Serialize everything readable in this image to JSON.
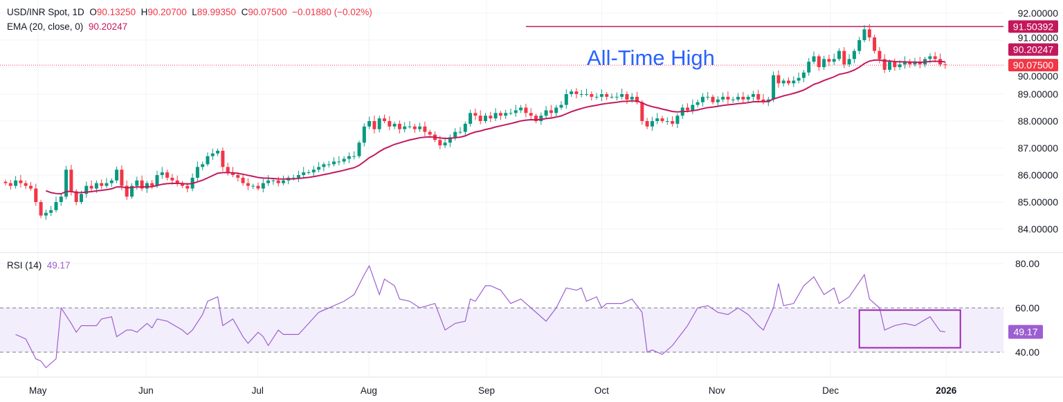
{
  "legend": {
    "symbol": "USD/INR Spot, 1D",
    "o_label": "O",
    "o": "90.13250",
    "h_label": "H",
    "h": "90.20700",
    "l_label": "L",
    "l": "89.99350",
    "c_label": "C",
    "c": "90.07500",
    "change": "−0.01880 (−0.02%)",
    "ema_label": "EMA (20, close, 0)",
    "ema_value": "90.20247",
    "rsi_label": "RSI (14)",
    "rsi_value": "49.17"
  },
  "colors": {
    "up": "#089981",
    "down": "#f23645",
    "ema": "#c2185b",
    "ath": "#c2185b",
    "annotation": "#2962ff",
    "rsi": "#9c5fd1",
    "rsi_box": "#9c27b0",
    "rsi_band": "#f3eefb"
  },
  "chart_data": [
    {
      "type": "candlestick",
      "title": "USD/INR Spot, 1D",
      "ylim": [
        84,
        92
      ],
      "y_ticks": [
        "92.00000",
        "91.00000",
        "90.00000",
        "89.00000",
        "88.00000",
        "87.00000",
        "86.00000",
        "85.00000",
        "84.00000"
      ],
      "y_tick_values": [
        92,
        91,
        90,
        89,
        88,
        87,
        86,
        85,
        84
      ],
      "x_ticks": [
        {
          "label": "May",
          "bar": 6.4,
          "bold": false
        },
        {
          "label": "Jun",
          "bar": 27.8,
          "bold": false
        },
        {
          "label": "Jul",
          "bar": 49.9,
          "bold": false
        },
        {
          "label": "Aug",
          "bar": 71.9,
          "bold": false
        },
        {
          "label": "Sep",
          "bar": 95.2,
          "bold": false
        },
        {
          "label": "Oct",
          "bar": 118,
          "bold": false
        },
        {
          "label": "Nov",
          "bar": 140.8,
          "bold": false
        },
        {
          "label": "Dec",
          "bar": 163.3,
          "bold": false
        },
        {
          "label": "2026",
          "bar": 186.2,
          "bold": true
        }
      ],
      "closes": [
        85.7,
        85.6,
        85.8,
        85.7,
        85.6,
        85.5,
        85.0,
        84.5,
        84.6,
        84.7,
        85.0,
        85.2,
        86.2,
        85.4,
        85.0,
        85.3,
        85.6,
        85.5,
        85.7,
        85.6,
        85.7,
        85.8,
        86.2,
        85.6,
        85.2,
        85.6,
        85.8,
        85.5,
        85.7,
        85.6,
        86.0,
        86.1,
        85.9,
        85.8,
        85.7,
        85.6,
        85.5,
        85.9,
        86.3,
        86.4,
        86.7,
        86.8,
        86.9,
        86.3,
        86.1,
        86.0,
        85.9,
        85.7,
        85.6,
        85.6,
        85.5,
        85.7,
        85.8,
        85.8,
        85.7,
        85.8,
        85.9,
        85.9,
        86.0,
        86.1,
        86.1,
        86.2,
        86.3,
        86.4,
        86.4,
        86.5,
        86.5,
        86.6,
        86.7,
        86.7,
        87.2,
        87.8,
        88.0,
        87.7,
        88.1,
        88.0,
        87.8,
        87.9,
        87.7,
        87.8,
        87.8,
        87.7,
        87.8,
        87.6,
        87.5,
        87.3,
        87.1,
        87.2,
        87.4,
        87.6,
        87.6,
        87.9,
        88.3,
        88.2,
        88.0,
        88.2,
        88.1,
        88.3,
        88.2,
        88.3,
        88.3,
        88.4,
        88.5,
        88.3,
        88.2,
        88.0,
        88.2,
        88.4,
        88.3,
        88.5,
        88.6,
        89.0,
        89.1,
        89.0,
        89.0,
        89.0,
        88.9,
        88.9,
        89.0,
        88.9,
        88.9,
        88.9,
        89.0,
        88.8,
        88.9,
        88.7,
        88.0,
        87.8,
        88.0,
        88.1,
        88.0,
        88.0,
        87.9,
        88.2,
        88.5,
        88.4,
        88.6,
        88.7,
        88.9,
        88.9,
        88.7,
        88.8,
        88.9,
        88.8,
        88.8,
        88.9,
        88.8,
        88.9,
        89.0,
        88.8,
        88.7,
        88.8,
        89.7,
        89.4,
        89.5,
        89.4,
        89.5,
        89.6,
        89.8,
        90.2,
        90.4,
        90.0,
        90.3,
        90.2,
        90.3,
        90.6,
        90.1,
        90.3,
        90.6,
        91.0,
        91.4,
        91.1,
        90.6,
        90.3,
        89.9,
        90.2,
        90.0,
        90.1,
        90.2,
        90.1,
        90.2,
        90.1,
        90.3,
        90.4,
        90.3,
        90.1,
        90.075
      ],
      "ema_period": 20,
      "price_labels": [
        {
          "value": "91.50392",
          "level": 91.50392,
          "color": "#c2185b",
          "shown_at": 91.50392
        },
        {
          "value": "90.20247",
          "level": 90.20247,
          "color": "#c2185b",
          "shown_at": 90.65
        },
        {
          "value": "90.07500",
          "level": 90.075,
          "color": "#f23645",
          "shown_at": 90.075
        }
      ],
      "all_time_high": {
        "label": "All-Time High",
        "level": 91.50392,
        "from_bar": 103
      },
      "current_price": 90.075
    },
    {
      "type": "line",
      "title": "RSI (14)",
      "ylim": [
        30,
        85
      ],
      "y_ticks": [
        "80.00",
        "60.00",
        "40.00"
      ],
      "y_tick_values": [
        80,
        60,
        40
      ],
      "band": [
        40,
        60
      ],
      "highlight_box": {
        "from_bar": 169,
        "to_bar": 189,
        "range": [
          42,
          59
        ]
      },
      "last_value": "49.17",
      "points": [
        [
          2,
          48
        ],
        [
          4,
          46
        ],
        [
          6,
          37
        ],
        [
          7,
          36
        ],
        [
          8,
          33
        ],
        [
          10,
          37
        ],
        [
          11,
          60
        ],
        [
          13,
          53
        ],
        [
          14,
          49
        ],
        [
          15,
          52
        ],
        [
          18,
          52
        ],
        [
          19,
          55
        ],
        [
          21,
          56
        ],
        [
          22,
          47
        ],
        [
          24,
          50
        ],
        [
          25,
          50
        ],
        [
          26,
          49
        ],
        [
          28,
          53
        ],
        [
          29,
          51
        ],
        [
          30,
          55
        ],
        [
          32,
          54
        ],
        [
          35,
          50
        ],
        [
          36,
          48
        ],
        [
          37,
          50
        ],
        [
          39,
          57
        ],
        [
          40,
          63
        ],
        [
          42,
          65
        ],
        [
          43,
          52
        ],
        [
          45,
          55
        ],
        [
          47,
          47
        ],
        [
          48,
          44
        ],
        [
          50,
          49
        ],
        [
          51,
          47
        ],
        [
          52,
          43
        ],
        [
          54,
          50
        ],
        [
          55,
          48
        ],
        [
          58,
          48
        ],
        [
          60,
          53
        ],
        [
          62,
          58
        ],
        [
          65,
          61
        ],
        [
          67,
          63
        ],
        [
          69,
          66
        ],
        [
          71,
          75
        ],
        [
          72,
          79
        ],
        [
          74,
          66
        ],
        [
          75,
          73
        ],
        [
          77,
          70
        ],
        [
          78,
          64
        ],
        [
          80,
          63
        ],
        [
          82,
          60
        ],
        [
          85,
          62
        ],
        [
          87,
          50
        ],
        [
          89,
          53
        ],
        [
          91,
          54
        ],
        [
          92,
          64
        ],
        [
          93,
          63
        ],
        [
          95,
          70
        ],
        [
          96,
          70
        ],
        [
          98,
          68
        ],
        [
          100,
          62
        ],
        [
          102,
          64
        ],
        [
          104,
          60
        ],
        [
          107,
          54
        ],
        [
          109,
          60
        ],
        [
          111,
          69
        ],
        [
          113,
          68
        ],
        [
          114,
          69
        ],
        [
          115,
          63
        ],
        [
          117,
          65
        ],
        [
          118,
          60
        ],
        [
          119,
          62
        ],
        [
          122,
          62
        ],
        [
          124,
          64
        ],
        [
          126,
          58
        ],
        [
          127,
          40
        ],
        [
          128,
          41
        ],
        [
          130,
          39
        ],
        [
          132,
          43
        ],
        [
          134,
          49
        ],
        [
          135,
          52
        ],
        [
          137,
          60
        ],
        [
          139,
          61
        ],
        [
          141,
          58
        ],
        [
          143,
          57
        ],
        [
          145,
          60
        ],
        [
          147,
          57
        ],
        [
          149,
          52
        ],
        [
          150,
          50
        ],
        [
          152,
          60
        ],
        [
          153,
          71
        ],
        [
          154,
          61
        ],
        [
          156,
          62
        ],
        [
          158,
          70
        ],
        [
          160,
          74
        ],
        [
          162,
          66
        ],
        [
          164,
          69
        ],
        [
          165,
          62
        ],
        [
          167,
          65
        ],
        [
          170,
          75
        ],
        [
          171,
          64
        ],
        [
          173,
          60
        ],
        [
          174,
          50
        ],
        [
          176,
          52
        ],
        [
          178,
          53
        ],
        [
          180,
          52
        ],
        [
          183,
          56
        ],
        [
          185,
          49.5
        ],
        [
          186,
          49.17
        ]
      ]
    }
  ]
}
